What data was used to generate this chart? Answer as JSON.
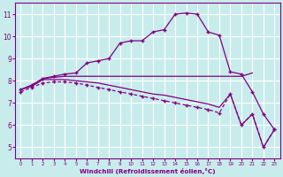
{
  "xlabel": "Windchill (Refroidissement éolien,°C)",
  "background_color": "#c8ecec",
  "line_color": "#800080",
  "grid_color": "#ffffff",
  "xlim": [
    -0.5,
    23.5
  ],
  "ylim": [
    4.5,
    11.5
  ],
  "xticks": [
    0,
    1,
    2,
    3,
    4,
    5,
    6,
    7,
    8,
    9,
    10,
    11,
    12,
    13,
    14,
    15,
    16,
    17,
    18,
    19,
    20,
    21,
    22,
    23
  ],
  "yticks": [
    5,
    6,
    7,
    8,
    9,
    10,
    11
  ],
  "curve1_x": [
    0,
    1,
    2,
    3,
    4,
    5,
    6,
    7,
    8,
    9,
    10,
    11,
    12,
    13,
    14,
    15,
    16,
    17,
    18,
    19,
    20,
    21,
    22,
    23
  ],
  "curve1_y": [
    7.6,
    7.8,
    8.1,
    8.2,
    8.3,
    8.35,
    8.8,
    8.9,
    9.0,
    9.7,
    9.8,
    9.8,
    10.2,
    10.3,
    11.0,
    11.05,
    11.0,
    10.2,
    10.05,
    8.4,
    8.3,
    7.5,
    6.5,
    5.8
  ],
  "curve1_marker": "+",
  "curve1_ls": "-",
  "curve2_x": [
    0,
    1,
    2,
    3,
    4,
    5,
    6,
    7,
    8,
    9,
    10,
    11,
    12,
    13,
    14,
    15,
    16,
    17,
    18,
    19,
    20,
    21
  ],
  "curve2_y": [
    7.6,
    7.8,
    8.1,
    8.15,
    8.2,
    8.2,
    8.2,
    8.2,
    8.2,
    8.2,
    8.2,
    8.2,
    8.2,
    8.2,
    8.2,
    8.2,
    8.2,
    8.2,
    8.2,
    8.2,
    8.2,
    8.35
  ],
  "curve2_marker": null,
  "curve2_ls": "-",
  "curve3_x": [
    0,
    1,
    2,
    3,
    4,
    5,
    6,
    7,
    8,
    9,
    10,
    11,
    12,
    13,
    14,
    15,
    16,
    17,
    18,
    19,
    20,
    21,
    22,
    23
  ],
  "curve3_y": [
    7.6,
    7.75,
    8.05,
    8.05,
    8.05,
    8.0,
    7.95,
    7.9,
    7.8,
    7.7,
    7.6,
    7.5,
    7.4,
    7.35,
    7.25,
    7.15,
    7.05,
    6.95,
    6.8,
    7.4,
    6.0,
    6.5,
    5.0,
    5.8
  ],
  "curve3_marker": null,
  "curve3_ls": "-",
  "curve4_x": [
    0,
    1,
    2,
    3,
    4,
    5,
    6,
    7,
    8,
    9,
    10,
    11,
    12,
    13,
    14,
    15,
    16,
    17,
    18,
    19,
    20,
    21,
    22,
    23
  ],
  "curve4_y": [
    7.5,
    7.7,
    7.9,
    7.95,
    7.95,
    7.9,
    7.8,
    7.7,
    7.6,
    7.5,
    7.4,
    7.3,
    7.2,
    7.1,
    7.0,
    6.9,
    6.8,
    6.7,
    6.55,
    7.4,
    6.0,
    6.5,
    5.0,
    5.8
  ],
  "curve4_marker": "+",
  "curve4_ls": "--"
}
